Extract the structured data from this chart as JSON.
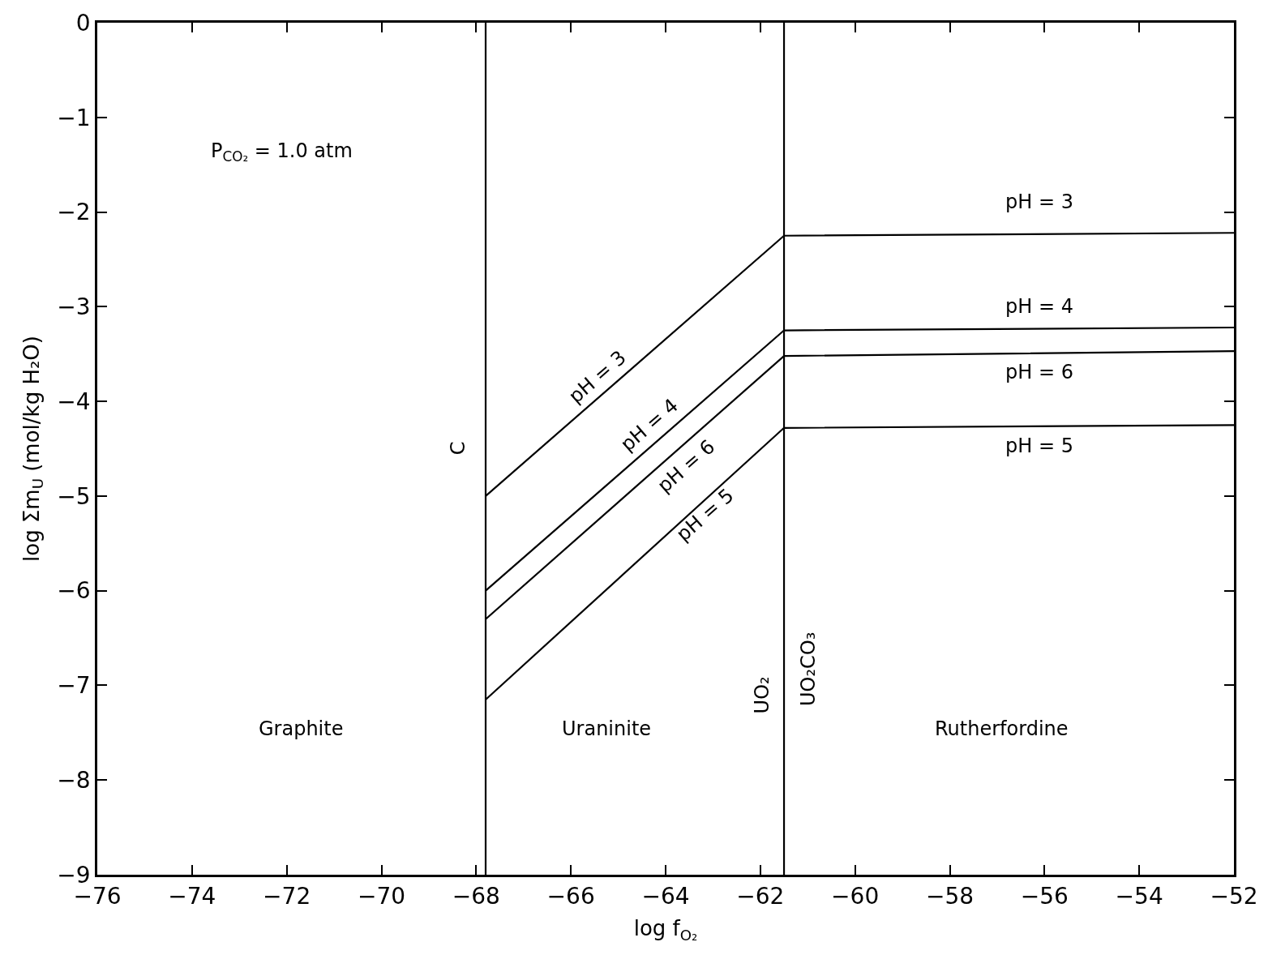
{
  "chart_data": {
    "type": "line",
    "xlabel": "log f$_{O₂}$",
    "ylabel": "log Σm$_{U}$ (mol/kg H₂O)",
    "x": [
      -67.8,
      -61.5,
      -52
    ],
    "series": [
      {
        "color": "#000000",
        "values": [
          -5.0,
          -2.25,
          -2.22
        ]
      },
      {
        "color": "#000000",
        "values": [
          -6.0,
          -3.25,
          -3.22
        ]
      },
      {
        "color": "#000000",
        "values": [
          -6.3,
          -3.52,
          -3.47
        ]
      },
      {
        "color": "#000000",
        "values": [
          -7.15,
          -4.28,
          -4.25
        ]
      }
    ],
    "ref_lines": [
      {
        "axis": "x",
        "value": -67.8,
        "color": "#000000"
      },
      {
        "axis": "x",
        "value": -61.5,
        "color": "#000000"
      }
    ],
    "annotations": [
      "P$_{CO₂}$ = 1.0 atm",
      "Graphite",
      "Uraninite",
      "Rutherfordine",
      "C",
      "UO₂",
      "UO₂CO₃",
      "pH = 3",
      "pH = 4",
      "pH = 6",
      "pH = 5",
      "pH = 3",
      "pH = 4",
      "pH = 6",
      "pH = 5"
    ],
    "xlim": [
      -76,
      -52
    ],
    "xticks": [
      -76,
      -74,
      -72,
      -70,
      -68,
      -66,
      -64,
      -62,
      -60,
      -58,
      -56,
      -54,
      -52
    ],
    "ylim": [
      -9,
      0
    ],
    "yticks": [
      -9,
      -8,
      -7,
      -6,
      -5,
      -4,
      -3,
      -2,
      -1,
      0
    ],
    "grid": false,
    "marker": "none",
    "line_style": "solid"
  }
}
